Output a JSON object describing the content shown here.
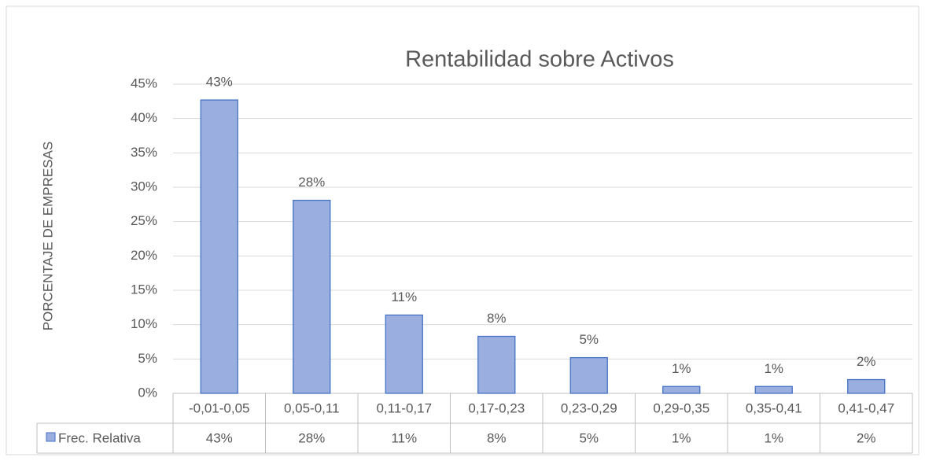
{
  "chart_data": {
    "type": "bar",
    "title": "Rentabilidad sobre Activos",
    "ylabel": "PORCENTAJE DE EMPRESAS",
    "categories": [
      "-0,01-0,05",
      "0,05-0,11",
      "0,11-0,17",
      "0,17-0,23",
      "0,23-0,29",
      "0,29-0,35",
      "0,35-0,41",
      "0,41-0,47"
    ],
    "series": [
      {
        "name": "Frec. Relativa",
        "color": "#9aaee0",
        "edgecolor": "#4472c4",
        "values": [
          42.7,
          28.1,
          11.4,
          8.3,
          5.2,
          1.0,
          1.0,
          2.0
        ],
        "value_labels": [
          "43%",
          "28%",
          "11%",
          "8%",
          "5%",
          "1%",
          "1%",
          "2%"
        ]
      }
    ],
    "ylim": [
      0,
      45
    ],
    "yticks": [
      {
        "value": 0,
        "label": "0%"
      },
      {
        "value": 5,
        "label": "5%"
      },
      {
        "value": 10,
        "label": "10%"
      },
      {
        "value": 15,
        "label": "15%"
      },
      {
        "value": 20,
        "label": "20%"
      },
      {
        "value": 25,
        "label": "25%"
      },
      {
        "value": 30,
        "label": "30%"
      },
      {
        "value": 35,
        "label": "35%"
      },
      {
        "value": 40,
        "label": "40%"
      },
      {
        "value": 45,
        "label": "45%"
      }
    ],
    "grid": true,
    "data_table": true
  }
}
